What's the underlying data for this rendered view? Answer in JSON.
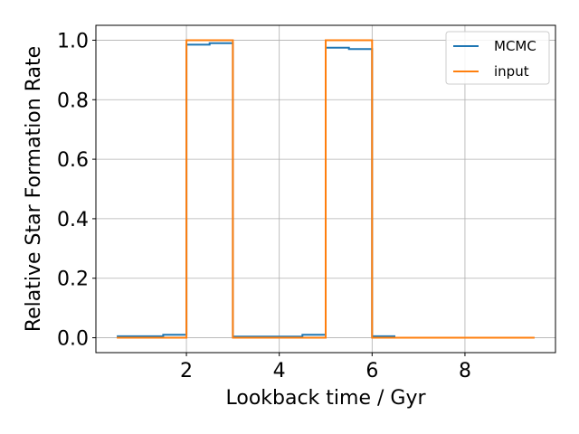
{
  "chart_data": {
    "type": "line",
    "step": "post",
    "xlabel": "Lookback time / Gyr",
    "ylabel": "Relative Star Formation Rate",
    "xlim": [
      0.05,
      9.95
    ],
    "ylim": [
      -0.05,
      1.05
    ],
    "xticks": [
      2,
      4,
      6,
      8
    ],
    "yticks": [
      0.0,
      0.2,
      0.4,
      0.6,
      0.8,
      1.0
    ],
    "xtick_labels": [
      "2",
      "4",
      "6",
      "8"
    ],
    "ytick_labels": [
      "0.0",
      "0.2",
      "0.4",
      "0.6",
      "0.8",
      "1.0"
    ],
    "grid": true,
    "legend_position": "top-right",
    "series": [
      {
        "name": "MCMC",
        "color": "#1f77b4",
        "edges": [
          0.5,
          1.0,
          1.5,
          2.0,
          2.5,
          3.0,
          3.5,
          4.0,
          4.5,
          5.0,
          5.5,
          6.0,
          6.5
        ],
        "values": [
          0.005,
          0.005,
          0.01,
          0.985,
          0.99,
          0.004,
          0.004,
          0.004,
          0.01,
          0.975,
          0.97,
          0.005
        ]
      },
      {
        "name": "input",
        "color": "#ff7f0e",
        "edges": [
          0.5,
          2.0,
          3.0,
          5.0,
          6.0,
          9.5
        ],
        "values": [
          0.0,
          1.0,
          0.0,
          1.0,
          0.0
        ]
      }
    ]
  }
}
